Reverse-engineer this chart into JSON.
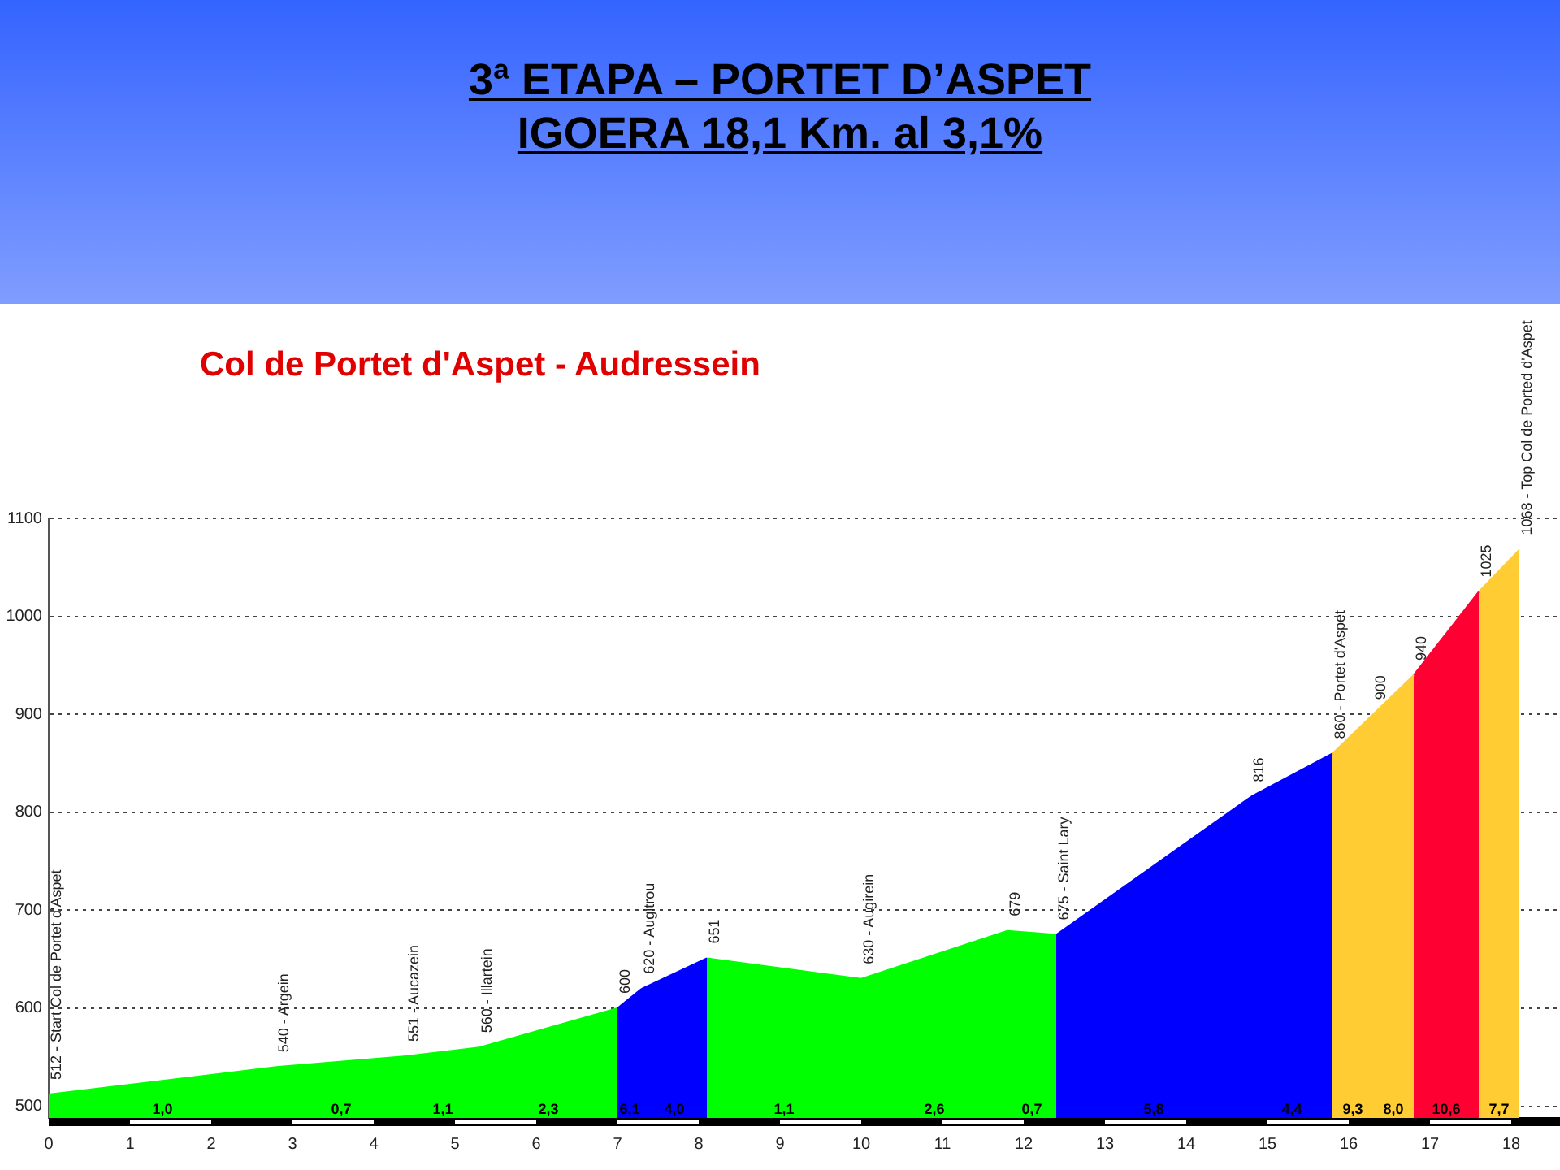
{
  "chart_data": {
    "type": "area",
    "title": "3ª ETAPA – PORTET D’ASPET\nIGOERA 18,1 Km. al 3,1%",
    "subtitle": "Col de Portet d'Aspet - Audressein",
    "xlim": [
      0,
      18.6
    ],
    "xticks": [
      0,
      1,
      2,
      3,
      4,
      5,
      6,
      7,
      8,
      9,
      10,
      11,
      12,
      13,
      14,
      15,
      16,
      17,
      18
    ],
    "ylim": [
      488,
      1100
    ],
    "yticks": [
      500,
      600,
      700,
      800,
      900,
      1000,
      1100
    ],
    "grid": "y",
    "series": [
      {
        "color": "#00ff00",
        "x": [
          0,
          2.8
        ],
        "values": [
          512,
          540
        ],
        "value_labels": [
          "512 - Start Col de Portet d'Aspet",
          null
        ]
      },
      {
        "color": "#00ff00",
        "x": [
          2.8,
          4.4
        ],
        "values": [
          540,
          551
        ],
        "value_labels": [
          "540 - Argein",
          null
        ]
      },
      {
        "color": "#00ff00",
        "x": [
          4.4,
          5.3
        ],
        "values": [
          551,
          560
        ],
        "value_labels": [
          "551 - Aucazein",
          null
        ]
      },
      {
        "color": "#00ff00",
        "x": [
          5.3,
          7.0
        ],
        "values": [
          560,
          600
        ],
        "value_labels": [
          "560 - Illartein",
          null
        ]
      },
      {
        "color": "#0000ff",
        "x": [
          7.0,
          7.3
        ],
        "values": [
          600,
          620
        ],
        "value_labels": [
          "600",
          null
        ]
      },
      {
        "color": "#0000ff",
        "x": [
          7.3,
          8.1
        ],
        "values": [
          620,
          651
        ],
        "value_labels": [
          "620 - Augitrou",
          null
        ]
      },
      {
        "color": "#00ff00",
        "x": [
          8.1,
          10.0
        ],
        "values": [
          651,
          630
        ],
        "value_labels": [
          "651",
          null
        ]
      },
      {
        "color": "#00ff00",
        "x": [
          10.0,
          11.8
        ],
        "values": [
          630,
          679
        ],
        "value_labels": [
          "630 - Augirein",
          null
        ]
      },
      {
        "color": "#00ff00",
        "x": [
          11.8,
          12.4
        ],
        "values": [
          679,
          675
        ],
        "value_labels": [
          "679",
          null
        ]
      },
      {
        "color": "#0000ff",
        "x": [
          12.4,
          14.8
        ],
        "values": [
          675,
          816
        ],
        "value_labels": [
          "675 - Saint Lary",
          null
        ]
      },
      {
        "color": "#0000ff",
        "x": [
          14.8,
          15.8
        ],
        "values": [
          816,
          860
        ],
        "value_labels": [
          "816",
          null
        ]
      },
      {
        "color": "#ffcc33",
        "x": [
          15.8,
          16.3
        ],
        "values": [
          860,
          900
        ],
        "value_labels": [
          "860 - Portet d'Aspet",
          null
        ]
      },
      {
        "color": "#ffcc33",
        "x": [
          16.3,
          16.8
        ],
        "values": [
          900,
          940
        ],
        "value_labels": [
          "900",
          null
        ]
      },
      {
        "color": "#ff0033",
        "x": [
          16.8,
          17.6
        ],
        "values": [
          940,
          1025
        ],
        "value_labels": [
          "940",
          null
        ]
      },
      {
        "color": "#ffcc33",
        "x": [
          17.6,
          18.1
        ],
        "values": [
          1025,
          1068
        ],
        "value_labels": [
          "1025",
          "1068 - Top Col de Ported d'Aspet"
        ]
      }
    ],
    "annotations": [
      {
        "text": "1,0",
        "x": 1.4,
        "y": 496
      },
      {
        "text": "0,7",
        "x": 3.6,
        "y": 496
      },
      {
        "text": "1,1",
        "x": 4.85,
        "y": 496
      },
      {
        "text": "2,3",
        "x": 6.15,
        "y": 496
      },
      {
        "text": "6,1",
        "x": 7.15,
        "y": 496
      },
      {
        "text": "4,0",
        "x": 7.7,
        "y": 496
      },
      {
        "text": "1,1",
        "x": 9.05,
        "y": 496
      },
      {
        "text": "2,6",
        "x": 10.9,
        "y": 496
      },
      {
        "text": "0,7",
        "x": 12.1,
        "y": 496
      },
      {
        "text": "5,8",
        "x": 13.6,
        "y": 496
      },
      {
        "text": "4,4",
        "x": 15.3,
        "y": 496
      },
      {
        "text": "9,3",
        "x": 16.05,
        "y": 496
      },
      {
        "text": "8,0",
        "x": 16.55,
        "y": 496
      },
      {
        "text": "10,6",
        "x": 17.2,
        "y": 496
      },
      {
        "text": "7,7",
        "x": 17.85,
        "y": 496
      }
    ]
  }
}
